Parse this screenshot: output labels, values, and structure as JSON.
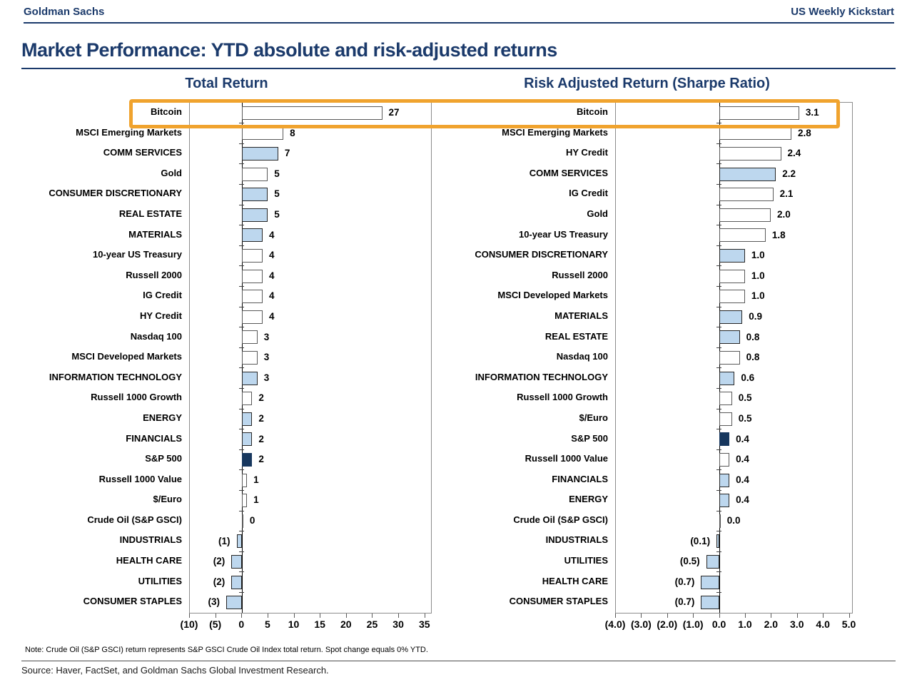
{
  "header": {
    "left": "Goldman Sachs",
    "right": "US Weekly Kickstart"
  },
  "title": "Market Performance: YTD absolute and risk-adjusted returns",
  "note": "Note: Crude Oil (S&P GSCI) return represents S&P GSCI Crude Oil Index total return. Spot change equals 0% YTD.",
  "source": "Source: Haver, FactSet, and Goldman Sachs Global Investment Research.",
  "colors": {
    "navy_text": "#1B3A6B",
    "plot_border": "#8C8C8C",
    "bar_white_fill": "#FFFFFF",
    "bar_white_border": "#595959",
    "bar_blue_fill": "#BDD7EE",
    "bar_blue_border": "#262626",
    "bar_navy_fill": "#17375E",
    "bar_navy_border": "#17375E",
    "highlight_orange": "#F0A32E"
  },
  "highlight": {
    "target_row": "Bitcoin"
  },
  "chart_data": [
    {
      "type": "bar",
      "orientation": "horizontal",
      "title": "Total Return",
      "xlabel": "",
      "ylabel": "",
      "axis": {
        "min": -10,
        "max": 36.4,
        "tick_values": [
          -10,
          -5,
          0,
          5,
          10,
          15,
          20,
          25,
          30,
          35
        ],
        "tick_labels": [
          "(10)",
          "(5)",
          "0",
          "5",
          "10",
          "15",
          "20",
          "25",
          "30",
          "35"
        ]
      },
      "rows": [
        {
          "label": "Bitcoin",
          "value": 27,
          "display": "27",
          "style": "white"
        },
        {
          "label": "MSCI Emerging Markets",
          "value": 8,
          "display": "8",
          "style": "white"
        },
        {
          "label": "COMM SERVICES",
          "value": 7,
          "display": "7",
          "style": "blue"
        },
        {
          "label": "Gold",
          "value": 5,
          "display": "5",
          "style": "white"
        },
        {
          "label": "CONSUMER DISCRETIONARY",
          "value": 5,
          "display": "5",
          "style": "blue"
        },
        {
          "label": "REAL ESTATE",
          "value": 5,
          "display": "5",
          "style": "blue"
        },
        {
          "label": "MATERIALS",
          "value": 4,
          "display": "4",
          "style": "blue"
        },
        {
          "label": "10-year US Treasury",
          "value": 4,
          "display": "4",
          "style": "white"
        },
        {
          "label": "Russell 2000",
          "value": 4,
          "display": "4",
          "style": "white"
        },
        {
          "label": "IG Credit",
          "value": 4,
          "display": "4",
          "style": "white"
        },
        {
          "label": "HY Credit",
          "value": 4,
          "display": "4",
          "style": "white"
        },
        {
          "label": "Nasdaq 100",
          "value": 3,
          "display": "3",
          "style": "white"
        },
        {
          "label": "MSCI Developed Markets",
          "value": 3,
          "display": "3",
          "style": "white"
        },
        {
          "label": "INFORMATION TECHNOLOGY",
          "value": 3,
          "display": "3",
          "style": "blue"
        },
        {
          "label": "Russell 1000 Growth",
          "value": 2,
          "display": "2",
          "style": "white"
        },
        {
          "label": "ENERGY",
          "value": 2,
          "display": "2",
          "style": "blue"
        },
        {
          "label": "FINANCIALS",
          "value": 2,
          "display": "2",
          "style": "blue"
        },
        {
          "label": "S&P 500",
          "value": 2,
          "display": "2",
          "style": "navy"
        },
        {
          "label": "Russell 1000 Value",
          "value": 1,
          "display": "1",
          "style": "white"
        },
        {
          "label": "$/Euro",
          "value": 1,
          "display": "1",
          "style": "white"
        },
        {
          "label": "Crude Oil (S&P GSCI)",
          "value": 0,
          "display": "0",
          "style": "white"
        },
        {
          "label": "INDUSTRIALS",
          "value": -1,
          "display": "(1)",
          "style": "blue"
        },
        {
          "label": "HEALTH CARE",
          "value": -2,
          "display": "(2)",
          "style": "blue"
        },
        {
          "label": "UTILITIES",
          "value": -2,
          "display": "(2)",
          "style": "blue"
        },
        {
          "label": "CONSUMER STAPLES",
          "value": -3,
          "display": "(3)",
          "style": "blue"
        }
      ]
    },
    {
      "type": "bar",
      "orientation": "horizontal",
      "title": "Risk Adjusted Return (Sharpe Ratio)",
      "xlabel": "",
      "ylabel": "",
      "axis": {
        "min": -4,
        "max": 5.15,
        "tick_values": [
          -4,
          -3,
          -2,
          -1,
          0,
          1,
          2,
          3,
          4,
          5
        ],
        "tick_labels": [
          "(4.0)",
          "(3.0)",
          "(2.0)",
          "(1.0)",
          "0.0",
          "1.0",
          "2.0",
          "3.0",
          "4.0",
          "5.0"
        ]
      },
      "rows": [
        {
          "label": "Bitcoin",
          "value": 3.1,
          "display": "3.1",
          "style": "white"
        },
        {
          "label": "MSCI Emerging Markets",
          "value": 2.8,
          "display": "2.8",
          "style": "white"
        },
        {
          "label": "HY Credit",
          "value": 2.4,
          "display": "2.4",
          "style": "white"
        },
        {
          "label": "COMM SERVICES",
          "value": 2.2,
          "display": "2.2",
          "style": "blue"
        },
        {
          "label": "IG Credit",
          "value": 2.1,
          "display": "2.1",
          "style": "white"
        },
        {
          "label": "Gold",
          "value": 2.0,
          "display": "2.0",
          "style": "white"
        },
        {
          "label": "10-year US Treasury",
          "value": 1.8,
          "display": "1.8",
          "style": "white"
        },
        {
          "label": "CONSUMER DISCRETIONARY",
          "value": 1.0,
          "display": "1.0",
          "style": "blue"
        },
        {
          "label": "Russell 2000",
          "value": 1.0,
          "display": "1.0",
          "style": "white"
        },
        {
          "label": "MSCI Developed Markets",
          "value": 1.0,
          "display": "1.0",
          "style": "white"
        },
        {
          "label": "MATERIALS",
          "value": 0.9,
          "display": "0.9",
          "style": "blue"
        },
        {
          "label": "REAL ESTATE",
          "value": 0.8,
          "display": "0.8",
          "style": "blue"
        },
        {
          "label": "Nasdaq 100",
          "value": 0.8,
          "display": "0.8",
          "style": "white"
        },
        {
          "label": "INFORMATION TECHNOLOGY",
          "value": 0.6,
          "display": "0.6",
          "style": "blue"
        },
        {
          "label": "Russell 1000 Growth",
          "value": 0.5,
          "display": "0.5",
          "style": "white"
        },
        {
          "label": "$/Euro",
          "value": 0.5,
          "display": "0.5",
          "style": "white"
        },
        {
          "label": "S&P 500",
          "value": 0.4,
          "display": "0.4",
          "style": "navy"
        },
        {
          "label": "Russell 1000 Value",
          "value": 0.4,
          "display": "0.4",
          "style": "white"
        },
        {
          "label": "FINANCIALS",
          "value": 0.4,
          "display": "0.4",
          "style": "blue"
        },
        {
          "label": "ENERGY",
          "value": 0.4,
          "display": "0.4",
          "style": "blue"
        },
        {
          "label": "Crude Oil (S&P GSCI)",
          "value": 0.0,
          "display": "0.0",
          "style": "white"
        },
        {
          "label": "INDUSTRIALS",
          "value": -0.1,
          "display": "(0.1)",
          "style": "blue"
        },
        {
          "label": "UTILITIES",
          "value": -0.5,
          "display": "(0.5)",
          "style": "blue"
        },
        {
          "label": "HEALTH CARE",
          "value": -0.7,
          "display": "(0.7)",
          "style": "blue"
        },
        {
          "label": "CONSUMER STAPLES",
          "value": -0.7,
          "display": "(0.7)",
          "style": "blue"
        }
      ]
    }
  ]
}
